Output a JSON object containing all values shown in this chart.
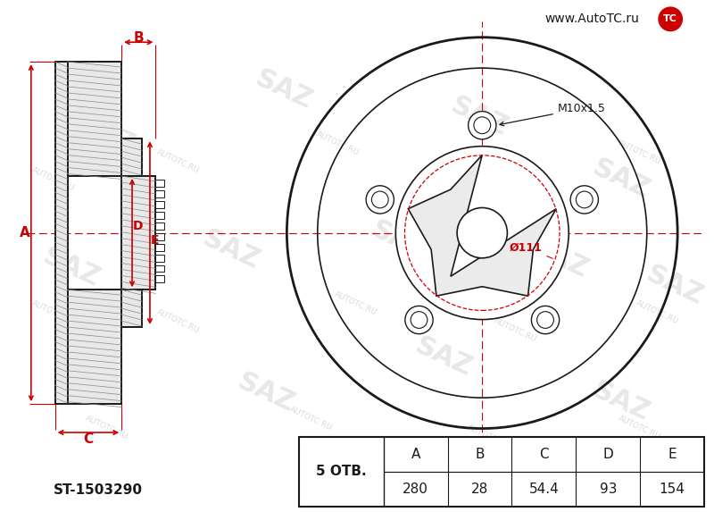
{
  "bg_color": "#ffffff",
  "line_color": "#1a1a1a",
  "red_color": "#cc0000",
  "part_number": "ST-1503290",
  "holes": "5",
  "holes_label": "5 ОТВ.",
  "thread": "M10x1.5",
  "diameter_label": "Ø111",
  "dim_A": "280",
  "dim_B": "28",
  "dim_C": "54.4",
  "dim_D": "93",
  "dim_E": "154",
  "website": "www.AutoTC.ru",
  "watermark_saz": "SAZ",
  "watermark_url": "AUTOTC.RU"
}
